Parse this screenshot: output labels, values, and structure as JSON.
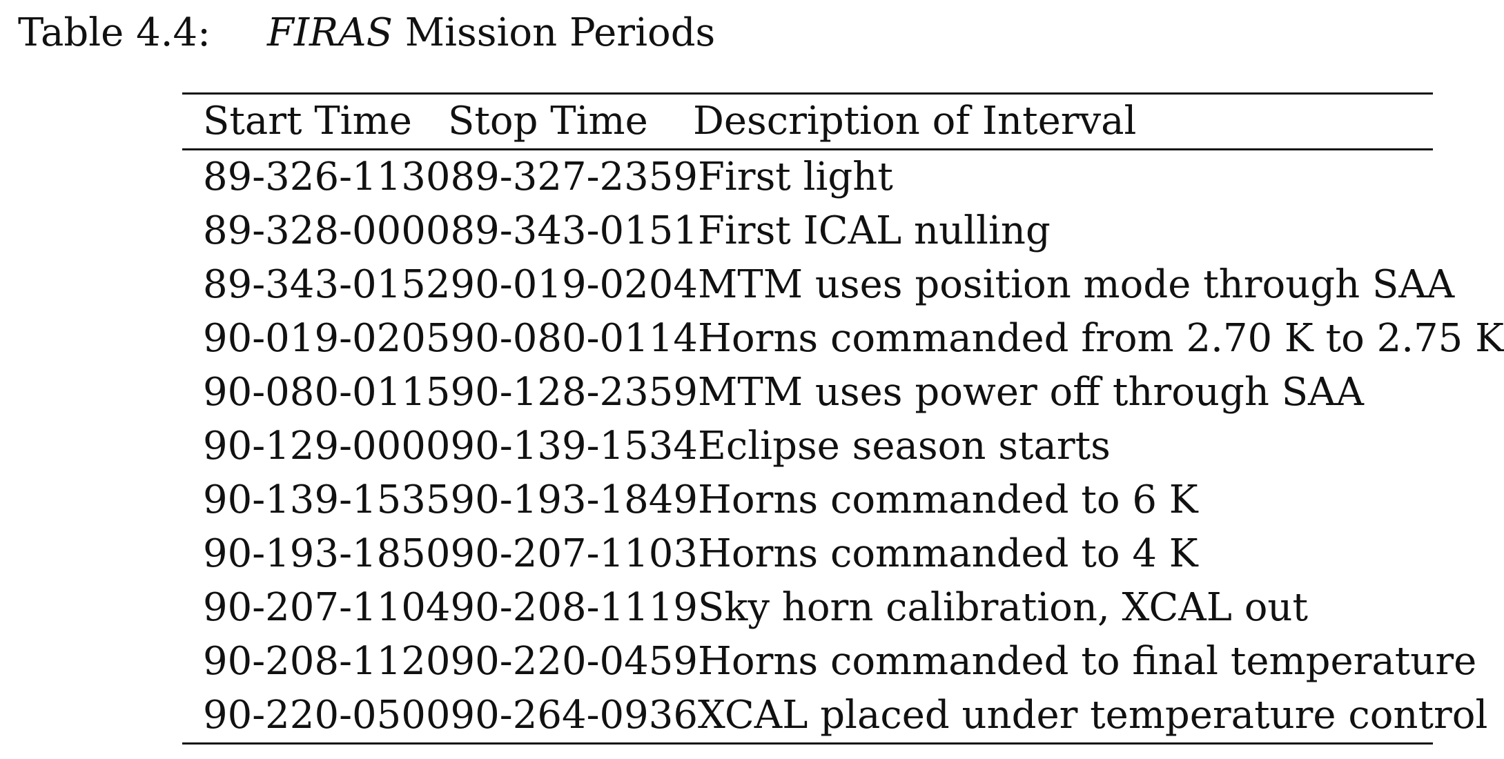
{
  "caption": {
    "label": "Table 4.4:",
    "title_italic": "FIRAS",
    "title_rest": " Mission Periods"
  },
  "table": {
    "headers": [
      "Start Time",
      "Stop Time",
      "Description of Interval"
    ],
    "rows": [
      [
        "89-326-1130",
        "89-327-2359",
        "First light"
      ],
      [
        "89-328-0000",
        "89-343-0151",
        "First ICAL nulling"
      ],
      [
        "89-343-0152",
        "90-019-0204",
        "MTM uses position mode through SAA"
      ],
      [
        "90-019-0205",
        "90-080-0114",
        "Horns commanded from 2.70 K to 2.75 K"
      ],
      [
        "90-080-0115",
        "90-128-2359",
        "MTM uses power off through SAA"
      ],
      [
        "90-129-0000",
        "90-139-1534",
        "Eclipse season starts"
      ],
      [
        "90-139-1535",
        "90-193-1849",
        "Horns commanded to 6 K"
      ],
      [
        "90-193-1850",
        "90-207-1103",
        "Horns commanded to 4 K"
      ],
      [
        "90-207-1104",
        "90-208-1119",
        "Sky horn calibration, XCAL out"
      ],
      [
        "90-208-1120",
        "90-220-0459",
        "Horns commanded to final temperature"
      ],
      [
        "90-220-0500",
        "90-264-0936",
        "XCAL placed under temperature control"
      ]
    ]
  }
}
